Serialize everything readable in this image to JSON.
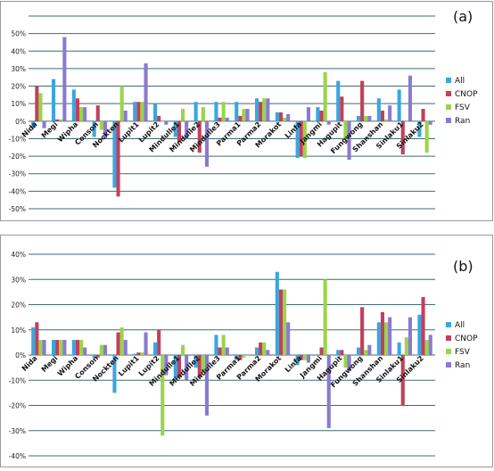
{
  "colors": {
    "All": "#3aa6de",
    "CNOP": "#c0405d",
    "FSV": "#9bd44a",
    "Ran": "#8a7ad0",
    "grid": "#3f6b73",
    "frame": "#9a9a9a"
  },
  "chart_data": [
    {
      "type": "bar",
      "panel_label": "(a)",
      "categories": [
        "Nida",
        "Megi",
        "Wipha",
        "Conson",
        "Nockten",
        "Lupit1",
        "Lupit2",
        "Mindulle1",
        "Mindulle2",
        "Mindulle3",
        "Parma1",
        "Parma2",
        "Morakot",
        "Linfa",
        "Jangmi",
        "Hagupit",
        "Fungwong",
        "Shanshan",
        "Sinlaku1",
        "Sinlaku2"
      ],
      "series": [
        {
          "name": "All",
          "values": [
            -4,
            24,
            18,
            -9,
            -38,
            11,
            10,
            -9,
            11,
            11,
            11,
            13,
            5,
            -21,
            8,
            23,
            3,
            13,
            18,
            -9
          ]
        },
        {
          "name": "CNOP",
          "values": [
            20,
            1,
            13,
            9,
            -43,
            11,
            3,
            -12,
            -18,
            2,
            3,
            11,
            5,
            -20,
            6,
            14,
            23,
            6,
            -19,
            7
          ]
        },
        {
          "name": "FSV",
          "values": [
            16,
            1,
            8,
            -5,
            20,
            11,
            0,
            7,
            8,
            11,
            7,
            13,
            2,
            -21,
            28,
            -10,
            3,
            1,
            0,
            -18
          ]
        },
        {
          "name": "Ran",
          "values": [
            -4,
            48,
            8,
            -10,
            6,
            33,
            -2,
            -10,
            -26,
            2,
            7,
            13,
            4,
            8,
            -2,
            -22,
            3,
            9,
            26,
            -2
          ]
        }
      ],
      "yticks": [
        "50%",
        "40%",
        "30%",
        "20%",
        "10%",
        "0%",
        "-10%",
        "-20%",
        "-30%",
        "-40%",
        "-50%"
      ],
      "ylim": [
        -50,
        60
      ]
    },
    {
      "type": "bar",
      "panel_label": "(b)",
      "categories": [
        "Nida",
        "Megi",
        "Wipha",
        "Conson",
        "Nockten",
        "Lupit1",
        "Lupit2",
        "Mindulle1",
        "Mindulle2",
        "Mindulle3",
        "Parma1",
        "Parma2",
        "Morakot",
        "Linfa",
        "Jangmi",
        "Hagupit",
        "Fungwong",
        "Shanshan",
        "Sinlaku1",
        "Sinlaku2"
      ],
      "series": [
        {
          "name": "All",
          "values": [
            11,
            6,
            6,
            -1,
            -15,
            0.5,
            5,
            -10,
            -5,
            8,
            -2,
            3,
            33,
            -4,
            0,
            2,
            3,
            13,
            5,
            16
          ]
        },
        {
          "name": "CNOP",
          "values": [
            13,
            6,
            6,
            -1,
            9,
            1,
            10,
            -9,
            -9,
            3,
            -2,
            5,
            26,
            -2,
            3,
            2,
            19,
            17,
            -20,
            23
          ]
        },
        {
          "name": "FSV",
          "values": [
            6,
            6,
            6,
            4,
            11,
            1,
            -32,
            4,
            -7,
            8,
            -1,
            5,
            26,
            -2,
            30,
            -5,
            2,
            13,
            7,
            6
          ]
        },
        {
          "name": "Ran",
          "values": [
            6,
            6,
            3,
            4,
            6,
            9,
            -8,
            -10,
            -24,
            3,
            0,
            2,
            13,
            -3,
            -29,
            -6,
            4,
            15,
            15,
            8
          ]
        }
      ],
      "yticks": [
        "40%",
        "30%",
        "20%",
        "10%",
        "0%",
        "-10%",
        "-20%",
        "-30%",
        "-40%"
      ],
      "ylim": [
        -40,
        40
      ]
    }
  ]
}
